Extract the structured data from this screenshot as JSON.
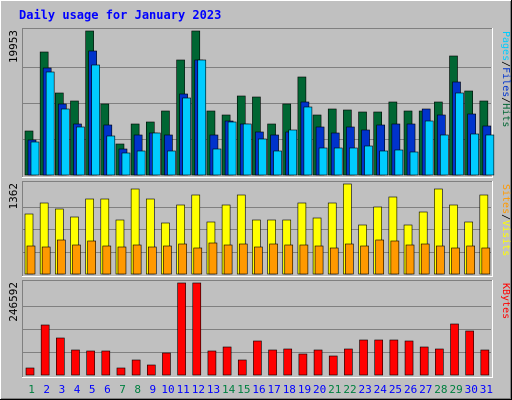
{
  "title": "Daily usage for January 2023",
  "colors": {
    "background": "#c0c0c0",
    "title": "#0000ff",
    "hits": "#006633",
    "files": "#0033cc",
    "pages": "#00ccff",
    "visits": "#ffff00",
    "sites": "#ff9900",
    "kbytes": "#ff0000",
    "weekend_day": "#008040",
    "weekday_day": "#0000ff"
  },
  "chart_data": {
    "type": "bar",
    "days": [
      "1",
      "2",
      "3",
      "4",
      "5",
      "6",
      "7",
      "8",
      "9",
      "10",
      "11",
      "12",
      "13",
      "14",
      "15",
      "16",
      "17",
      "18",
      "19",
      "20",
      "21",
      "22",
      "23",
      "24",
      "25",
      "26",
      "27",
      "28",
      "29",
      "30",
      "31"
    ],
    "weekend_days": [
      "1",
      "7",
      "8",
      "14",
      "15",
      "21",
      "22",
      "28",
      "29"
    ],
    "panels": [
      {
        "name": "requests",
        "max_label": "19953",
        "ymax": 19953,
        "legend": [
          {
            "text": "Hits",
            "color": "#006633"
          },
          {
            "text": "/",
            "color": "#000000"
          },
          {
            "text": "Files",
            "color": "#0033cc"
          },
          {
            "text": "/",
            "color": "#000000"
          },
          {
            "text": "Pages",
            "color": "#00ccff"
          }
        ],
        "series": [
          {
            "name": "Hits",
            "color": "#006633",
            "values": [
              6100,
              17100,
              11300,
              10200,
              20000,
              9900,
              4300,
              7100,
              7300,
              8800,
              16000,
              20000,
              8900,
              8300,
              10900,
              10800,
              7100,
              9900,
              13600,
              8300,
              9100,
              9000,
              8700,
              8700,
              10100,
              8800,
              8800,
              10100,
              16500,
              11600,
              10200
            ]
          },
          {
            "name": "Files",
            "color": "#0033cc",
            "values": [
              4800,
              14800,
              9900,
              7000,
              17200,
              6900,
              3600,
              5500,
              5800,
              5500,
              11200,
              16000,
              5500,
              7500,
              7100,
              6000,
              5600,
              6000,
              10100,
              6600,
              5800,
              6700,
              6200,
              6900,
              7000,
              7100,
              9200,
              8300,
              12900,
              8500,
              6800
            ]
          },
          {
            "name": "Pages",
            "color": "#00ccff",
            "values": [
              4600,
              14300,
              9200,
              6600,
              15300,
              5400,
              3100,
              3300,
              5800,
              3300,
              10700,
              15900,
              3600,
              7300,
              7000,
              5000,
              3300,
              6200,
              9400,
              3800,
              3700,
              3800,
              4000,
              3300,
              3400,
              3200,
              7500,
              5600,
              11400,
              5700,
              5500
            ]
          }
        ]
      },
      {
        "name": "visitors",
        "max_label": "1362",
        "ymax": 1362,
        "legend": [
          {
            "text": "Visits",
            "color": "#ffff00"
          },
          {
            "text": "/",
            "color": "#000000"
          },
          {
            "text": "Sites",
            "color": "#ff9900"
          }
        ],
        "series": [
          {
            "name": "Visits",
            "color": "#ffff00",
            "values": [
              910,
              1070,
              990,
              870,
              1130,
              1130,
              810,
              1290,
              1140,
              770,
              1040,
              1190,
              780,
              1040,
              1200,
              820,
              820,
              820,
              1080,
              840,
              1080,
              1362,
              740,
              1010,
              1170,
              740,
              940,
              1280,
              1040,
              780,
              1200
            ]
          },
          {
            "name": "Sites",
            "color": "#ff9900",
            "values": [
              420,
              410,
              520,
              440,
              500,
              420,
              410,
              440,
              410,
              420,
              450,
              390,
              470,
              440,
              460,
              410,
              450,
              440,
              440,
              420,
              390,
              450,
              430,
              510,
              500,
              440,
              460,
              430,
              390,
              430,
              390
            ]
          }
        ]
      },
      {
        "name": "kbytes",
        "max_label": "246592",
        "ymax": 246592,
        "legend": [
          {
            "text": "KBytes",
            "color": "#ff0000"
          }
        ],
        "series": [
          {
            "name": "KBytes",
            "color": "#ff0000",
            "values": [
              19000,
              133000,
              99000,
              68000,
              63000,
              64000,
              19000,
              39000,
              26000,
              60000,
              246592,
              246592,
              64000,
              76000,
              41000,
              92000,
              68000,
              71000,
              55000,
              68000,
              52000,
              69000,
              94000,
              94000,
              94000,
              91000,
              74000,
              71000,
              137000,
              117000,
              68000
            ]
          }
        ]
      }
    ]
  }
}
